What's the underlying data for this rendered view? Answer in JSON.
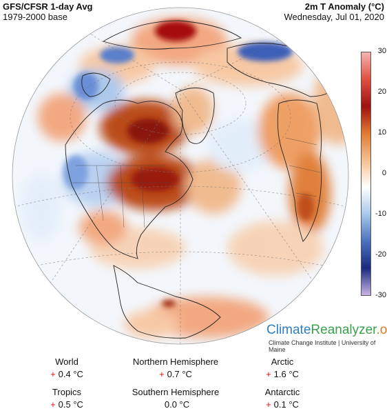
{
  "header": {
    "title_left": "GFS/CFSR 1-day Avg",
    "subtitle_left": "1979-2000 base",
    "title_right": "2m T Anomaly (°C)",
    "subtitle_right": "Wednesday, Jul 01, 2020"
  },
  "colorbar": {
    "ticks": [
      "30",
      "20",
      "10",
      "0",
      "-10",
      "-20",
      "-30"
    ],
    "colors": [
      "#f6b3b3",
      "#e05040",
      "#a01010",
      "#e07a30",
      "#f5c090",
      "#ffffff",
      "#a8c8ec",
      "#4a72c0",
      "#1a2a80",
      "#c9b3e6"
    ]
  },
  "brand": {
    "part1": "Climate",
    "part2": "Reanalyzer",
    "part3": ".org",
    "subtitle": "Climate Change Institute | University of Maine"
  },
  "stats": [
    {
      "label": "World",
      "value": "0.4 °C",
      "sign": "+"
    },
    {
      "label": "Northern Hemisphere",
      "value": "0.7 °C",
      "sign": "+"
    },
    {
      "label": "Arctic",
      "value": "1.6 °C",
      "sign": "+"
    },
    {
      "label": "Tropics",
      "value": "0.5 °C",
      "sign": "+"
    },
    {
      "label": "Southern Hemisphere",
      "value": "0.0 °C",
      "sign": ""
    },
    {
      "label": "Antarctic",
      "value": "0.1 °C",
      "sign": "+"
    }
  ]
}
